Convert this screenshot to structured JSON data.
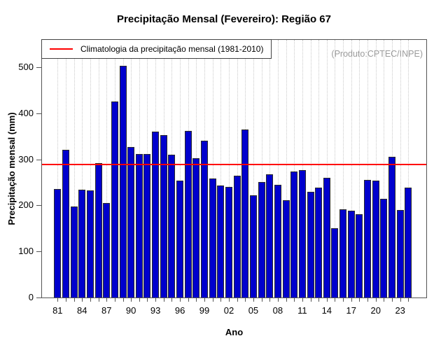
{
  "chart_data": {
    "type": "bar",
    "title": "Precipitação Mensal (Fevereiro): Região 67",
    "xlabel": "Ano",
    "ylabel": "Precipitação mensal (mm)",
    "ylim": [
      0,
      559
    ],
    "yticks": [
      0,
      100,
      200,
      300,
      400,
      500
    ],
    "x_tick_label_step": 3,
    "grid": "vertical-dotted",
    "legend_position": "top-left",
    "bar_color": "#0000CD",
    "years": [
      1981,
      1982,
      1983,
      1984,
      1985,
      1986,
      1987,
      1988,
      1989,
      1990,
      1991,
      1992,
      1993,
      1994,
      1995,
      1996,
      1997,
      1998,
      1999,
      2000,
      2001,
      2002,
      2003,
      2004,
      2005,
      2006,
      2007,
      2008,
      2009,
      2010,
      2011,
      2012,
      2013,
      2014,
      2015,
      2016,
      2017,
      2018,
      2019,
      2020,
      2021,
      2022,
      2023,
      2024
    ],
    "x_tick_labels": [
      "81",
      "82",
      "83",
      "84",
      "85",
      "86",
      "87",
      "88",
      "89",
      "90",
      "91",
      "92",
      "93",
      "94",
      "95",
      "96",
      "97",
      "98",
      "99",
      "00",
      "01",
      "02",
      "03",
      "04",
      "05",
      "06",
      "07",
      "08",
      "09",
      "10",
      "11",
      "12",
      "13",
      "14",
      "15",
      "16",
      "17",
      "18",
      "19",
      "20",
      "21",
      "22",
      "23",
      "24"
    ],
    "values": [
      235,
      321,
      197,
      234,
      232,
      292,
      205,
      425,
      503,
      327,
      311,
      311,
      360,
      352,
      310,
      254,
      361,
      302,
      341,
      258,
      243,
      240,
      265,
      364,
      222,
      250,
      268,
      244,
      211,
      273,
      276,
      230,
      238,
      260,
      151,
      191,
      188,
      181,
      255,
      254,
      214,
      305,
      190,
      238
    ],
    "climatology": {
      "value": 290,
      "color": "#FF0000",
      "label": "Climatologia da precipitação mensal (1981-2010)"
    }
  },
  "header": {
    "product_credit": "(Produto:CPTEC/INPE)"
  }
}
